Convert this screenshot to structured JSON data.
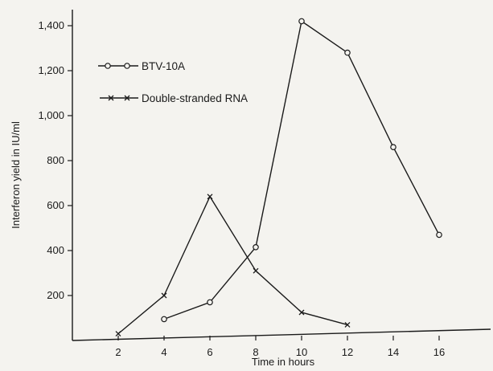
{
  "chart_data": {
    "type": "line",
    "title": "",
    "xlabel": "Time in hours",
    "ylabel": "Interferon yield in IU/ml",
    "xlim": [
      0,
      18
    ],
    "ylim": [
      0,
      1450
    ],
    "x_ticks": [
      2,
      4,
      6,
      8,
      10,
      12,
      14,
      16
    ],
    "x_tick_labels": [
      "2",
      "4",
      "6",
      "8",
      "10",
      "12",
      "14",
      "16"
    ],
    "y_ticks": [
      200,
      400,
      600,
      800,
      1000,
      1200,
      1400
    ],
    "y_tick_labels": [
      "200",
      "400",
      "600",
      "800",
      "1,000",
      "1,200",
      "1,400"
    ],
    "grid": false,
    "legend_position": "top-left",
    "series": [
      {
        "name": "BTV-10A",
        "marker": "circle",
        "x": [
          4,
          6,
          8,
          10,
          12,
          14,
          16
        ],
        "y": [
          95,
          170,
          415,
          1420,
          1280,
          860,
          470
        ]
      },
      {
        "name": "Double-stranded RNA",
        "marker": "x",
        "x": [
          2,
          4,
          6,
          8,
          10,
          12
        ],
        "y": [
          30,
          200,
          640,
          310,
          125,
          70
        ]
      }
    ]
  },
  "colors": {
    "background": "#f4f3ef",
    "ink": "#1a1a1a"
  }
}
